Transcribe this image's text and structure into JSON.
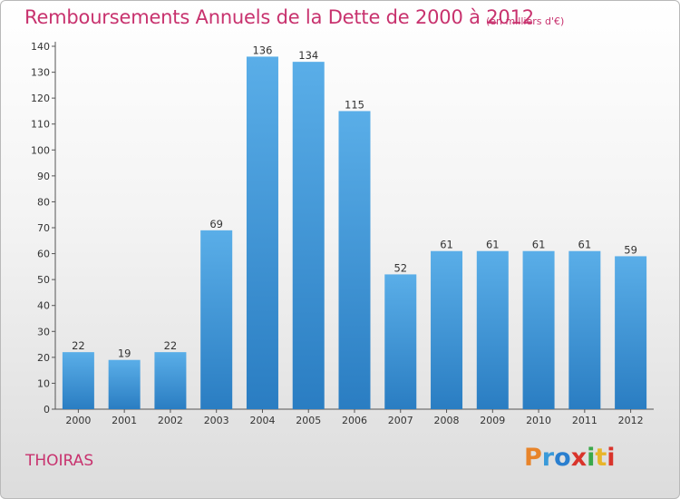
{
  "title": "Remboursements Annuels de la Dette de 2000 à 2012",
  "unit_note": "(en milliers d'€)",
  "commune": "THOIRAS",
  "logo_text": "Proxiti",
  "colors": {
    "title": "#c8326e",
    "bar_top": "#5aaee8",
    "bar_bottom": "#2a7dc2",
    "logo": [
      "#e8842a",
      "#3a9ad9",
      "#2a7fcf",
      "#d9342b",
      "#3aa84a",
      "#e8b52a",
      "#d9342b"
    ]
  },
  "chart_data": {
    "type": "bar",
    "title": "Remboursements Annuels de la Dette de 2000 à 2012",
    "categories": [
      "2000",
      "2001",
      "2002",
      "2003",
      "2004",
      "2005",
      "2006",
      "2007",
      "2008",
      "2009",
      "2010",
      "2011",
      "2012"
    ],
    "values": [
      22,
      19,
      22,
      69,
      136,
      134,
      115,
      52,
      61,
      61,
      61,
      61,
      59
    ],
    "xlabel": "",
    "ylabel": "",
    "ylim": [
      0,
      140
    ],
    "yticks": [
      0,
      10,
      20,
      30,
      40,
      50,
      60,
      70,
      80,
      90,
      100,
      110,
      120,
      130,
      140
    ],
    "grid": false,
    "legend": "none"
  }
}
